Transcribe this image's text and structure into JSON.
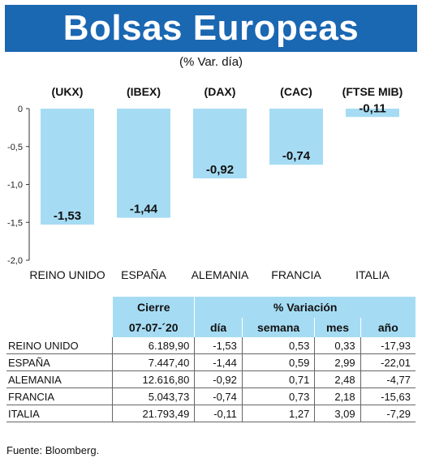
{
  "title": "Bolsas Europeas",
  "subtitle": "(% Var. día)",
  "chart_data": {
    "type": "bar",
    "categories": [
      "REINO UNIDO",
      "ESPAÑA",
      "ALEMANIA",
      "FRANCIA",
      "ITALIA"
    ],
    "index_labels": [
      "(UKX)",
      "(IBEX)",
      "(DAX)",
      "(CAC)",
      "(FTSE MIB)"
    ],
    "values": [
      -1.53,
      -1.44,
      -0.92,
      -0.74,
      -0.11
    ],
    "value_labels": [
      "-1,53",
      "-1,44",
      "-0,92",
      "-0,74",
      "-0,11"
    ],
    "y_ticks": [
      "0",
      "-0,5",
      "-1,0",
      "-1,5",
      "-2,0"
    ],
    "y_tick_values": [
      0,
      -0.5,
      -1.0,
      -1.5,
      -2.0
    ],
    "ylim": [
      -2.0,
      0
    ],
    "bar_color": "#a6dcf3",
    "grid": false
  },
  "table": {
    "header": {
      "cierre": "Cierre",
      "date": "07-07-´20",
      "variacion": "% Variación",
      "dia": "día",
      "semana": "semana",
      "mes": "mes",
      "ano": "año"
    },
    "rows": [
      {
        "name": "REINO UNIDO",
        "cierre": "6.189,90",
        "dia": "-1,53",
        "semana": "0,53",
        "mes": "0,33",
        "ano": "-17,93"
      },
      {
        "name": "ESPAÑA",
        "cierre": "7.447,40",
        "dia": "-1,44",
        "semana": "0,59",
        "mes": "2,99",
        "ano": "-22,01"
      },
      {
        "name": "ALEMANIA",
        "cierre": "12.616,80",
        "dia": "-0,92",
        "semana": "0,71",
        "mes": "2,48",
        "ano": "-4,77"
      },
      {
        "name": "FRANCIA",
        "cierre": "5.043,73",
        "dia": "-0,74",
        "semana": "0,73",
        "mes": "2,18",
        "ano": "-15,63"
      },
      {
        "name": "ITALIA",
        "cierre": "21.793,49",
        "dia": "-0,11",
        "semana": "1,27",
        "mes": "3,09",
        "ano": "-7,29"
      }
    ]
  },
  "source": "Fuente: Bloomberg.",
  "colors": {
    "title_bar": "#1a67b2",
    "table_header": "#a6dcf3"
  }
}
